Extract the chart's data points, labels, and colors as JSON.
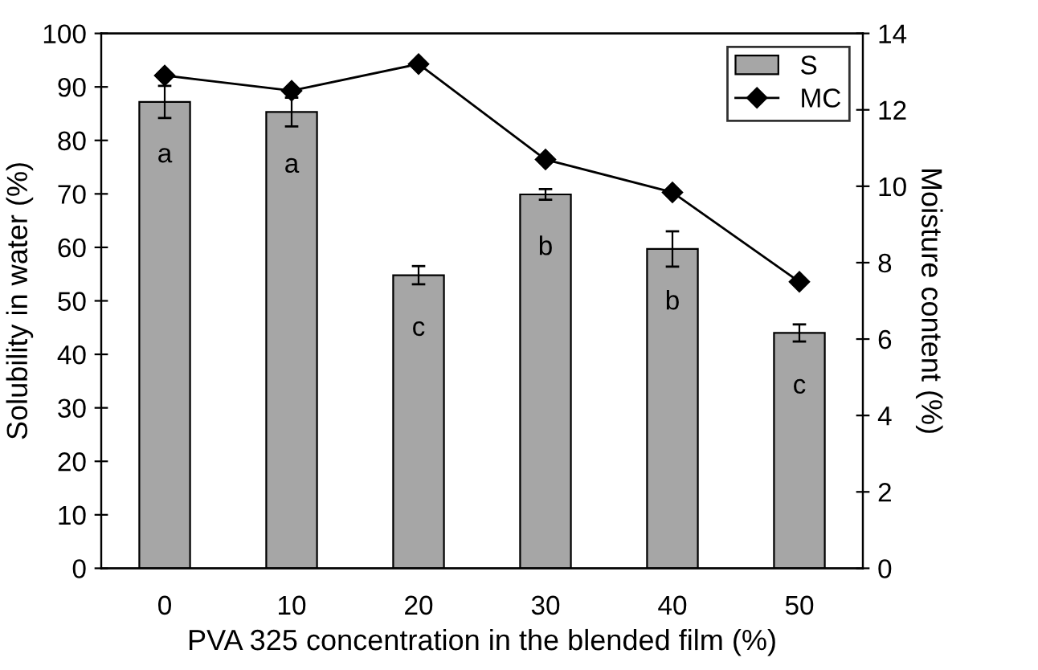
{
  "chart_data": {
    "type": "bar",
    "xlabel": "PVA 325 concentration in the blended film (%)",
    "ylabel": "Solubility in water (%)",
    "y2label": "Moisture content (%)",
    "categories": [
      "0",
      "10",
      "20",
      "30",
      "40",
      "50"
    ],
    "series": [
      {
        "name": "S",
        "color": "#a6a6a6",
        "values": [
          87.2,
          85.3,
          54.8,
          69.9,
          59.7,
          44.0
        ],
        "errors": [
          3.0,
          2.7,
          1.7,
          1.0,
          3.3,
          1.6
        ]
      },
      {
        "name": "MC",
        "type": "line",
        "axis": "y2",
        "color": "#000000",
        "marker": "diamond",
        "line_style": "solid",
        "values": [
          12.9,
          12.5,
          13.2,
          10.7,
          9.84,
          7.5
        ]
      }
    ],
    "ylim": [
      0,
      100
    ],
    "yticks": [
      0,
      10,
      20,
      30,
      40,
      50,
      60,
      70,
      80,
      90,
      100
    ],
    "y2lim": [
      0,
      14
    ],
    "y2ticks": [
      0,
      2,
      4,
      6,
      8,
      10,
      12,
      14
    ],
    "annotations": [
      "a",
      "a",
      "c",
      "b",
      "b",
      "c"
    ],
    "legend": "top right",
    "grid": false
  }
}
